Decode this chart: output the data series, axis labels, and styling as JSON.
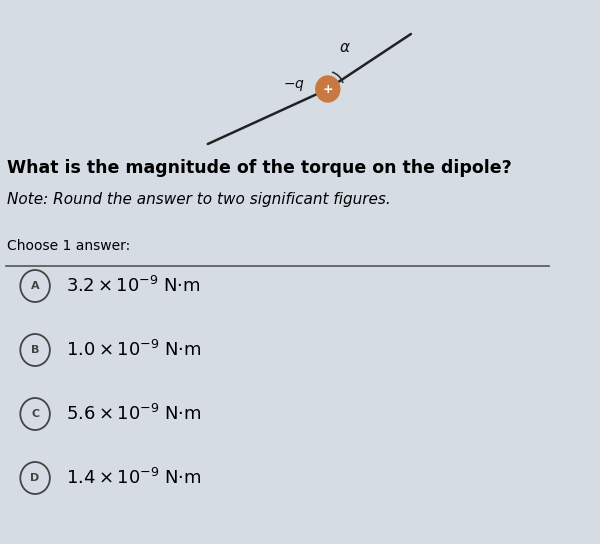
{
  "question_bold": "What is the magnitude of the torque on the dipole?",
  "question_note": "Note: Round the answer to two significant figures.",
  "choose_label": "Choose 1 answer:",
  "answers": [
    {
      "label": "A",
      "text": "3.2 × 10",
      "exp": "−9",
      "unit": " N·m"
    },
    {
      "label": "B",
      "text": "1.0 × 10",
      "exp": "−9",
      "unit": " N·m"
    },
    {
      "label": "C",
      "text": "5.6 × 10",
      "exp": "−9",
      "unit": " N·m"
    },
    {
      "label": "D",
      "text": "1.4 × 10",
      "exp": "−9",
      "unit": " N·m"
    }
  ],
  "bg_color": "#d6dce4",
  "answer_bg": "#d6dce4",
  "text_color": "#000000",
  "divider_color": "#555555",
  "circle_color": "#444444"
}
